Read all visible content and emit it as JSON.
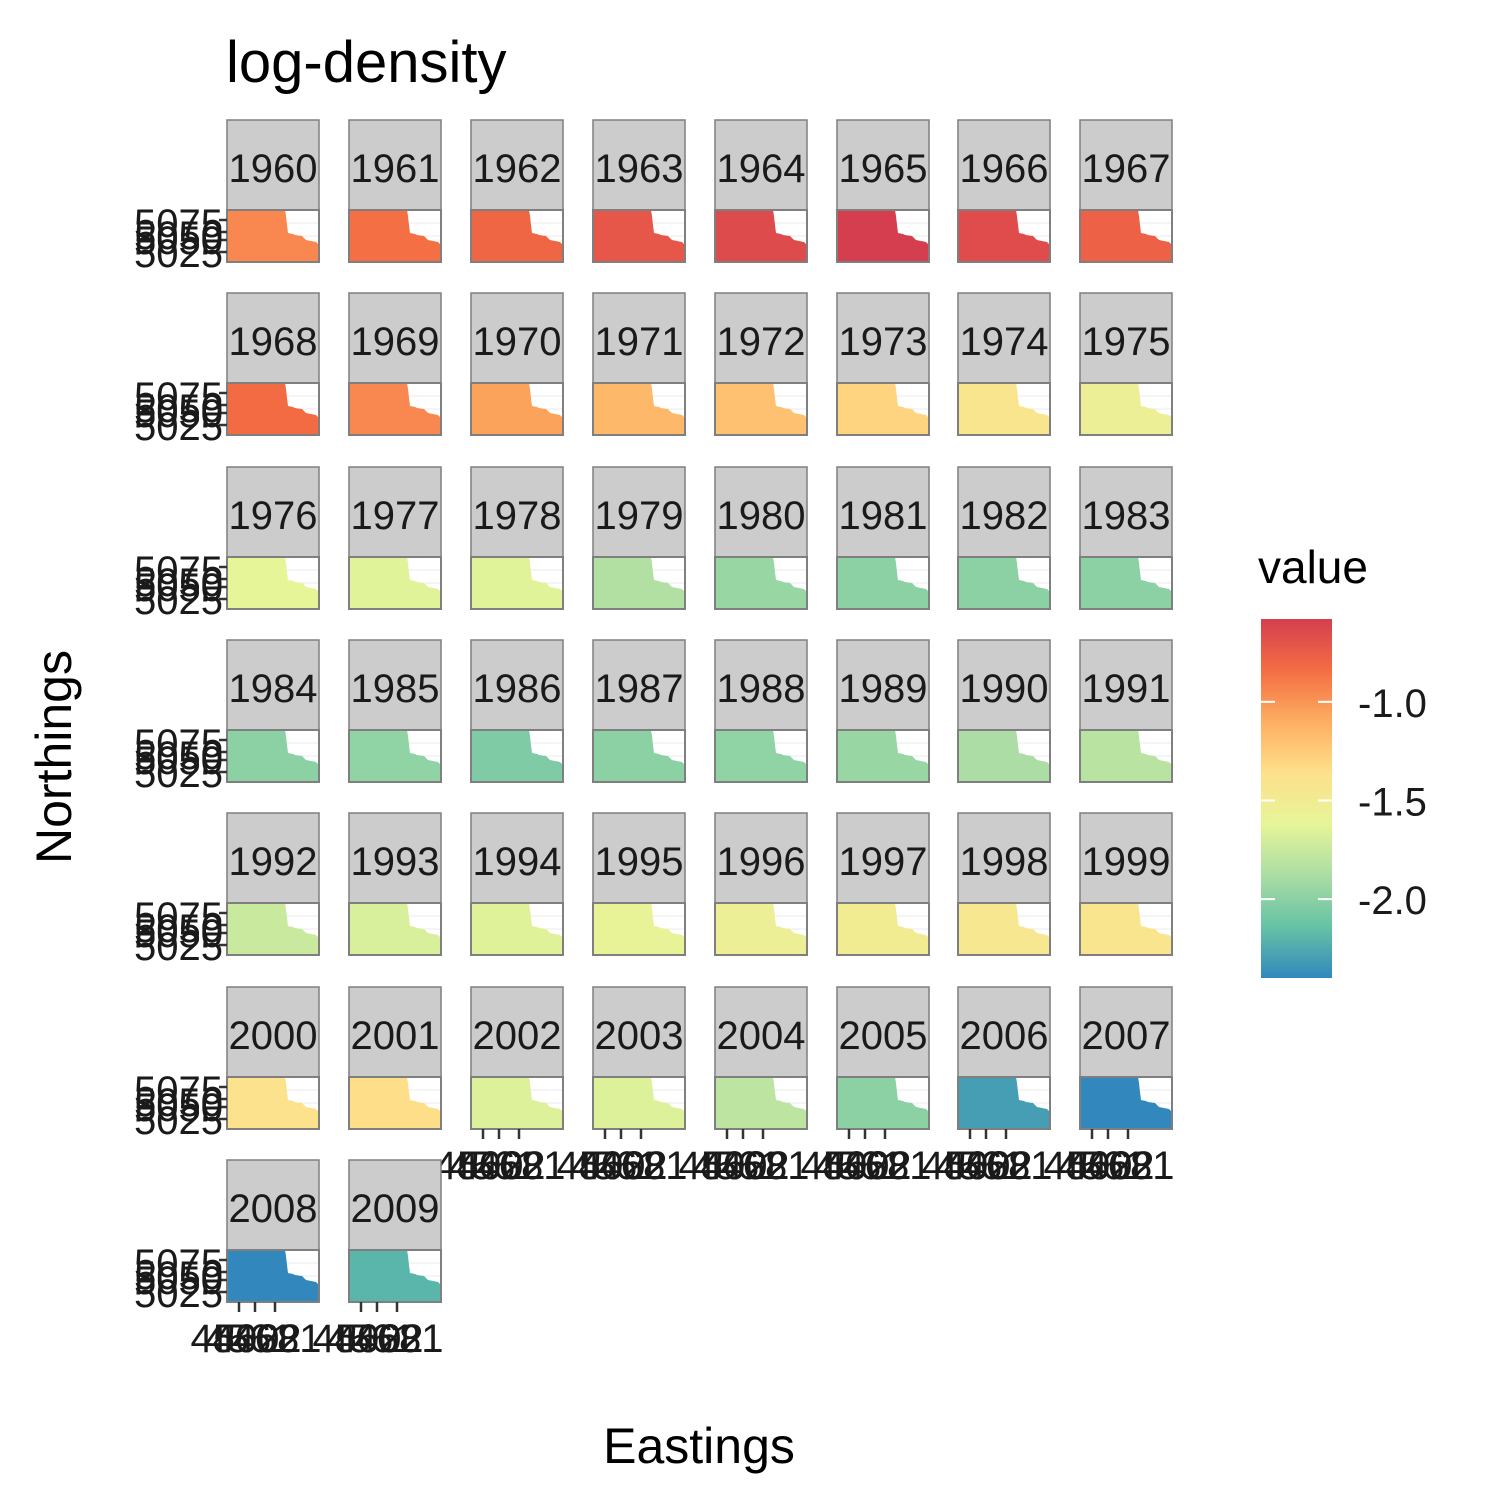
{
  "chart_data": {
    "type": "heatmap",
    "title": "log-density",
    "xlabel": "Eastings",
    "ylabel": "Northings",
    "panels": [
      "1960",
      "1961",
      "1962",
      "1963",
      "1964",
      "1965",
      "1966",
      "1967",
      "1968",
      "1969",
      "1970",
      "1971",
      "1972",
      "1973",
      "1974",
      "1975",
      "1976",
      "1977",
      "1978",
      "1979",
      "1980",
      "1981",
      "1982",
      "1983",
      "1984",
      "1985",
      "1986",
      "1987",
      "1988",
      "1989",
      "1990",
      "1991",
      "1992",
      "1993",
      "1994",
      "1995",
      "1996",
      "1997",
      "1998",
      "1999",
      "2000",
      "2001",
      "2002",
      "2003",
      "2004",
      "2005",
      "2006",
      "2007",
      "2008",
      "2009"
    ],
    "values": [
      -0.95,
      -0.85,
      -0.8,
      -0.72,
      -0.65,
      -0.58,
      -0.66,
      -0.78,
      -0.83,
      -0.95,
      -1.05,
      -1.15,
      -1.2,
      -1.3,
      -1.42,
      -1.55,
      -1.62,
      -1.64,
      -1.64,
      -1.85,
      -1.95,
      -2.0,
      -2.0,
      -2.0,
      -2.0,
      -1.98,
      -2.05,
      -2.0,
      -1.98,
      -1.95,
      -1.88,
      -1.82,
      -1.75,
      -1.68,
      -1.65,
      -1.6,
      -1.55,
      -1.5,
      -1.45,
      -1.42,
      -1.38,
      -1.35,
      -1.66,
      -1.66,
      -1.8,
      -2.0,
      -2.3,
      -2.4,
      -2.4,
      -2.2
    ],
    "x_ticks": [
      "4500",
      "4561",
      "4622",
      "4681"
    ],
    "y_ticks": [
      "5075",
      "5050",
      "5025"
    ],
    "legend": {
      "title": "value",
      "min": -2.4,
      "max": -0.58,
      "ticks": [
        -1.0,
        -1.5,
        -2.0
      ],
      "tick_labels": [
        "-1.0",
        "-1.5",
        "-2.0"
      ],
      "colors": [
        "#3288bd",
        "#66c2a5",
        "#abdda4",
        "#e6f598",
        "#fee08b",
        "#fdae61",
        "#f46d43",
        "#d53e4f"
      ],
      "placement": "right"
    }
  }
}
